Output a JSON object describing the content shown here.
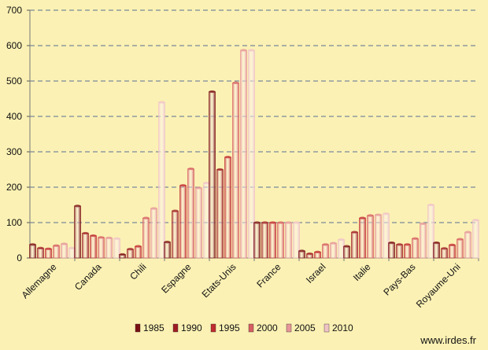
{
  "chart_data": {
    "type": "bar",
    "categories": [
      "Allemagne",
      "Canada",
      "Chili",
      "Espagne",
      "Etats-Unis",
      "France",
      "Israel",
      "Italie",
      "Pays-Bas",
      "Royaume-Uni"
    ],
    "series": [
      {
        "name": "1985",
        "color": "#7a0f12",
        "values": [
          38,
          147,
          10,
          45,
          470,
          100,
          20,
          33,
          43,
          43
        ]
      },
      {
        "name": "1990",
        "color": "#9e1d22",
        "values": [
          28,
          70,
          25,
          133,
          250,
          100,
          12,
          73,
          38,
          27
        ]
      },
      {
        "name": "1995",
        "color": "#c02a2e",
        "values": [
          26,
          63,
          33,
          205,
          285,
          100,
          17,
          113,
          38,
          37
        ]
      },
      {
        "name": "2000",
        "color": "#d65e60",
        "values": [
          35,
          58,
          113,
          252,
          495,
          100,
          38,
          120,
          55,
          53
        ]
      },
      {
        "name": "2005",
        "color": "#e69598",
        "values": [
          40,
          57,
          140,
          198,
          587,
          100,
          42,
          122,
          97,
          73
        ]
      },
      {
        "name": "2010",
        "color": "#f0c3c7",
        "values": [
          28,
          55,
          440,
          212,
          587,
          100,
          52,
          125,
          150,
          107
        ]
      }
    ],
    "ylim": [
      0,
      700
    ],
    "yticks": [
      "0",
      "100",
      "200",
      "300",
      "400",
      "500",
      "600",
      "700"
    ],
    "grid": true,
    "legend_position": "bottom"
  },
  "watermark": "www.irdes.fr"
}
